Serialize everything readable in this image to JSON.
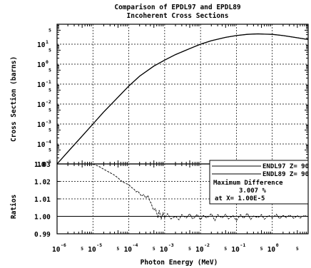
{
  "chart_data": {
    "type": "line",
    "title": "Comparison of EPDL97 and EPDL89",
    "subtitle": "Incoherent Cross Sections",
    "xlabel": "Photon Energy (MeV)",
    "x_scale": "log",
    "xlim": [
      1e-06,
      10
    ],
    "x_ticks": [
      {
        "base": "10",
        "exp": "-6"
      },
      {
        "base": "10",
        "exp": "-5"
      },
      {
        "base": "10",
        "exp": "-4"
      },
      {
        "base": "10",
        "exp": "-3"
      },
      {
        "base": "10",
        "exp": "-2"
      },
      {
        "base": "10",
        "exp": "-1"
      },
      {
        "base": "10",
        "exp": "0"
      }
    ],
    "x_minor_label": "5",
    "panels": [
      {
        "name": "cross-section",
        "ylabel": "Cross Section (barns)",
        "y_scale": "log",
        "ylim": [
          1e-05,
          100
        ],
        "y_ticks": [
          {
            "base": "10",
            "exp": "1"
          },
          {
            "base": "10",
            "exp": "0"
          },
          {
            "base": "10",
            "exp": "-1"
          },
          {
            "base": "10",
            "exp": "-2"
          },
          {
            "base": "10",
            "exp": "-3"
          },
          {
            "base": "10",
            "exp": "-4"
          },
          {
            "base": "10",
            "exp": "-5"
          }
        ],
        "y_minor_label": "5",
        "grid": true,
        "series": [
          {
            "name": "ENDL97 Z= 90",
            "x": [
              1e-06,
              2e-06,
              5e-06,
              1e-05,
              2e-05,
              5e-05,
              0.0001,
              0.0002,
              0.0005,
              0.001,
              0.002,
              0.005,
              0.01,
              0.02,
              0.05,
              0.1,
              0.2,
              0.4,
              0.6,
              1,
              2,
              5,
              10
            ],
            "y": [
              1e-05,
              4e-05,
              0.00025,
              0.001,
              0.004,
              0.022,
              0.08,
              0.25,
              0.8,
              1.6,
              3.0,
              6.0,
              10.0,
              15.0,
              22.0,
              27.0,
              31.0,
              33.0,
              32.0,
              31.0,
              27.0,
              21.0,
              17.0
            ]
          },
          {
            "name": "ENDL89 Z= 90",
            "x": [
              1e-06,
              2e-06,
              5e-06,
              1e-05,
              2e-05,
              5e-05,
              0.0001,
              0.0002,
              0.0005,
              0.001,
              0.002,
              0.005,
              0.01,
              0.02,
              0.05,
              0.1,
              0.2,
              0.4,
              0.6,
              1,
              2,
              5,
              10
            ],
            "y": [
              1e-05,
              4e-05,
              0.00025,
              0.001,
              0.004,
              0.022,
              0.08,
              0.25,
              0.8,
              1.6,
              3.0,
              6.0,
              10.0,
              15.0,
              22.0,
              27.0,
              31.0,
              33.0,
              32.0,
              31.0,
              27.0,
              21.0,
              17.0
            ]
          }
        ],
        "legend": {
          "placement": "right",
          "entries": [
            "ENDL97 Z= 90",
            "ENDL89 Z= 90"
          ],
          "annotation": [
            "Maximum Difference",
            "3.007 %",
            "at X= 1.00E-5"
          ]
        }
      },
      {
        "name": "ratios",
        "ylabel": "Ratios",
        "y_scale": "linear",
        "ylim": [
          0.99,
          1.03
        ],
        "y_ticks": [
          "1.03",
          "1.02",
          "1.01",
          "1.00",
          "0.99"
        ],
        "grid": true,
        "reference_line": 1.0,
        "series": [
          {
            "name": "ratio",
            "x": [
              1e-05,
              1.5e-05,
              2e-05,
              3e-05,
              4e-05,
              5e-05,
              6e-05,
              7e-05,
              8e-05,
              9e-05,
              0.0001,
              0.00012,
              0.00014,
              0.00016,
              0.00018,
              0.0002,
              0.00023,
              0.00026,
              0.0003,
              0.00034,
              0.00038,
              0.00042,
              0.00046,
              0.0005,
              0.00055,
              0.0006,
              0.00065,
              0.0007,
              0.0008,
              0.0009,
              0.001,
              0.0012,
              0.0015,
              0.002,
              0.0025,
              0.003,
              0.004,
              0.005,
              0.006,
              0.007,
              0.008,
              0.01,
              0.012,
              0.015,
              0.02,
              0.025,
              0.03,
              0.04,
              0.05,
              0.06,
              0.08,
              0.1,
              0.13,
              0.16,
              0.2,
              0.25,
              0.3,
              0.4,
              0.5,
              0.6,
              0.8,
              1,
              1.3,
              1.6,
              2,
              2.5,
              3,
              4,
              5,
              6,
              8,
              10
            ],
            "y": [
              1.03,
              1.0285,
              1.027,
              1.025,
              1.0235,
              1.022,
              1.0205,
              1.0195,
              1.019,
              1.0185,
              1.018,
              1.0165,
              1.0155,
              1.014,
              1.0145,
              1.013,
              1.0115,
              1.0125,
              1.0105,
              1.012,
              1.009,
              1.0075,
              1.005,
              1.0035,
              1.0045,
              1.002,
              0.999,
              1.0035,
              0.9985,
              1.002,
              0.999,
              1.0015,
              0.9985,
              1.0,
              0.998,
              1.001,
              0.999,
              1.0015,
              0.9985,
              0.9995,
              1.0012,
              0.998,
              1.0005,
              0.999,
              1.0015,
              0.9975,
              1.001,
              0.999,
              1.0012,
              0.9985,
              1.0005,
              0.9975,
              1.001,
              0.9988,
              1.0018,
              0.9982,
              1.0002,
              0.9992,
              1.001,
              0.9983,
              1.0006,
              0.999,
              1.0012,
              0.9986,
              1.0005,
              0.9992,
              1.0008,
              0.9988,
              1.0004,
              0.999,
              1.0006,
              0.9995
            ]
          }
        ]
      }
    ]
  }
}
